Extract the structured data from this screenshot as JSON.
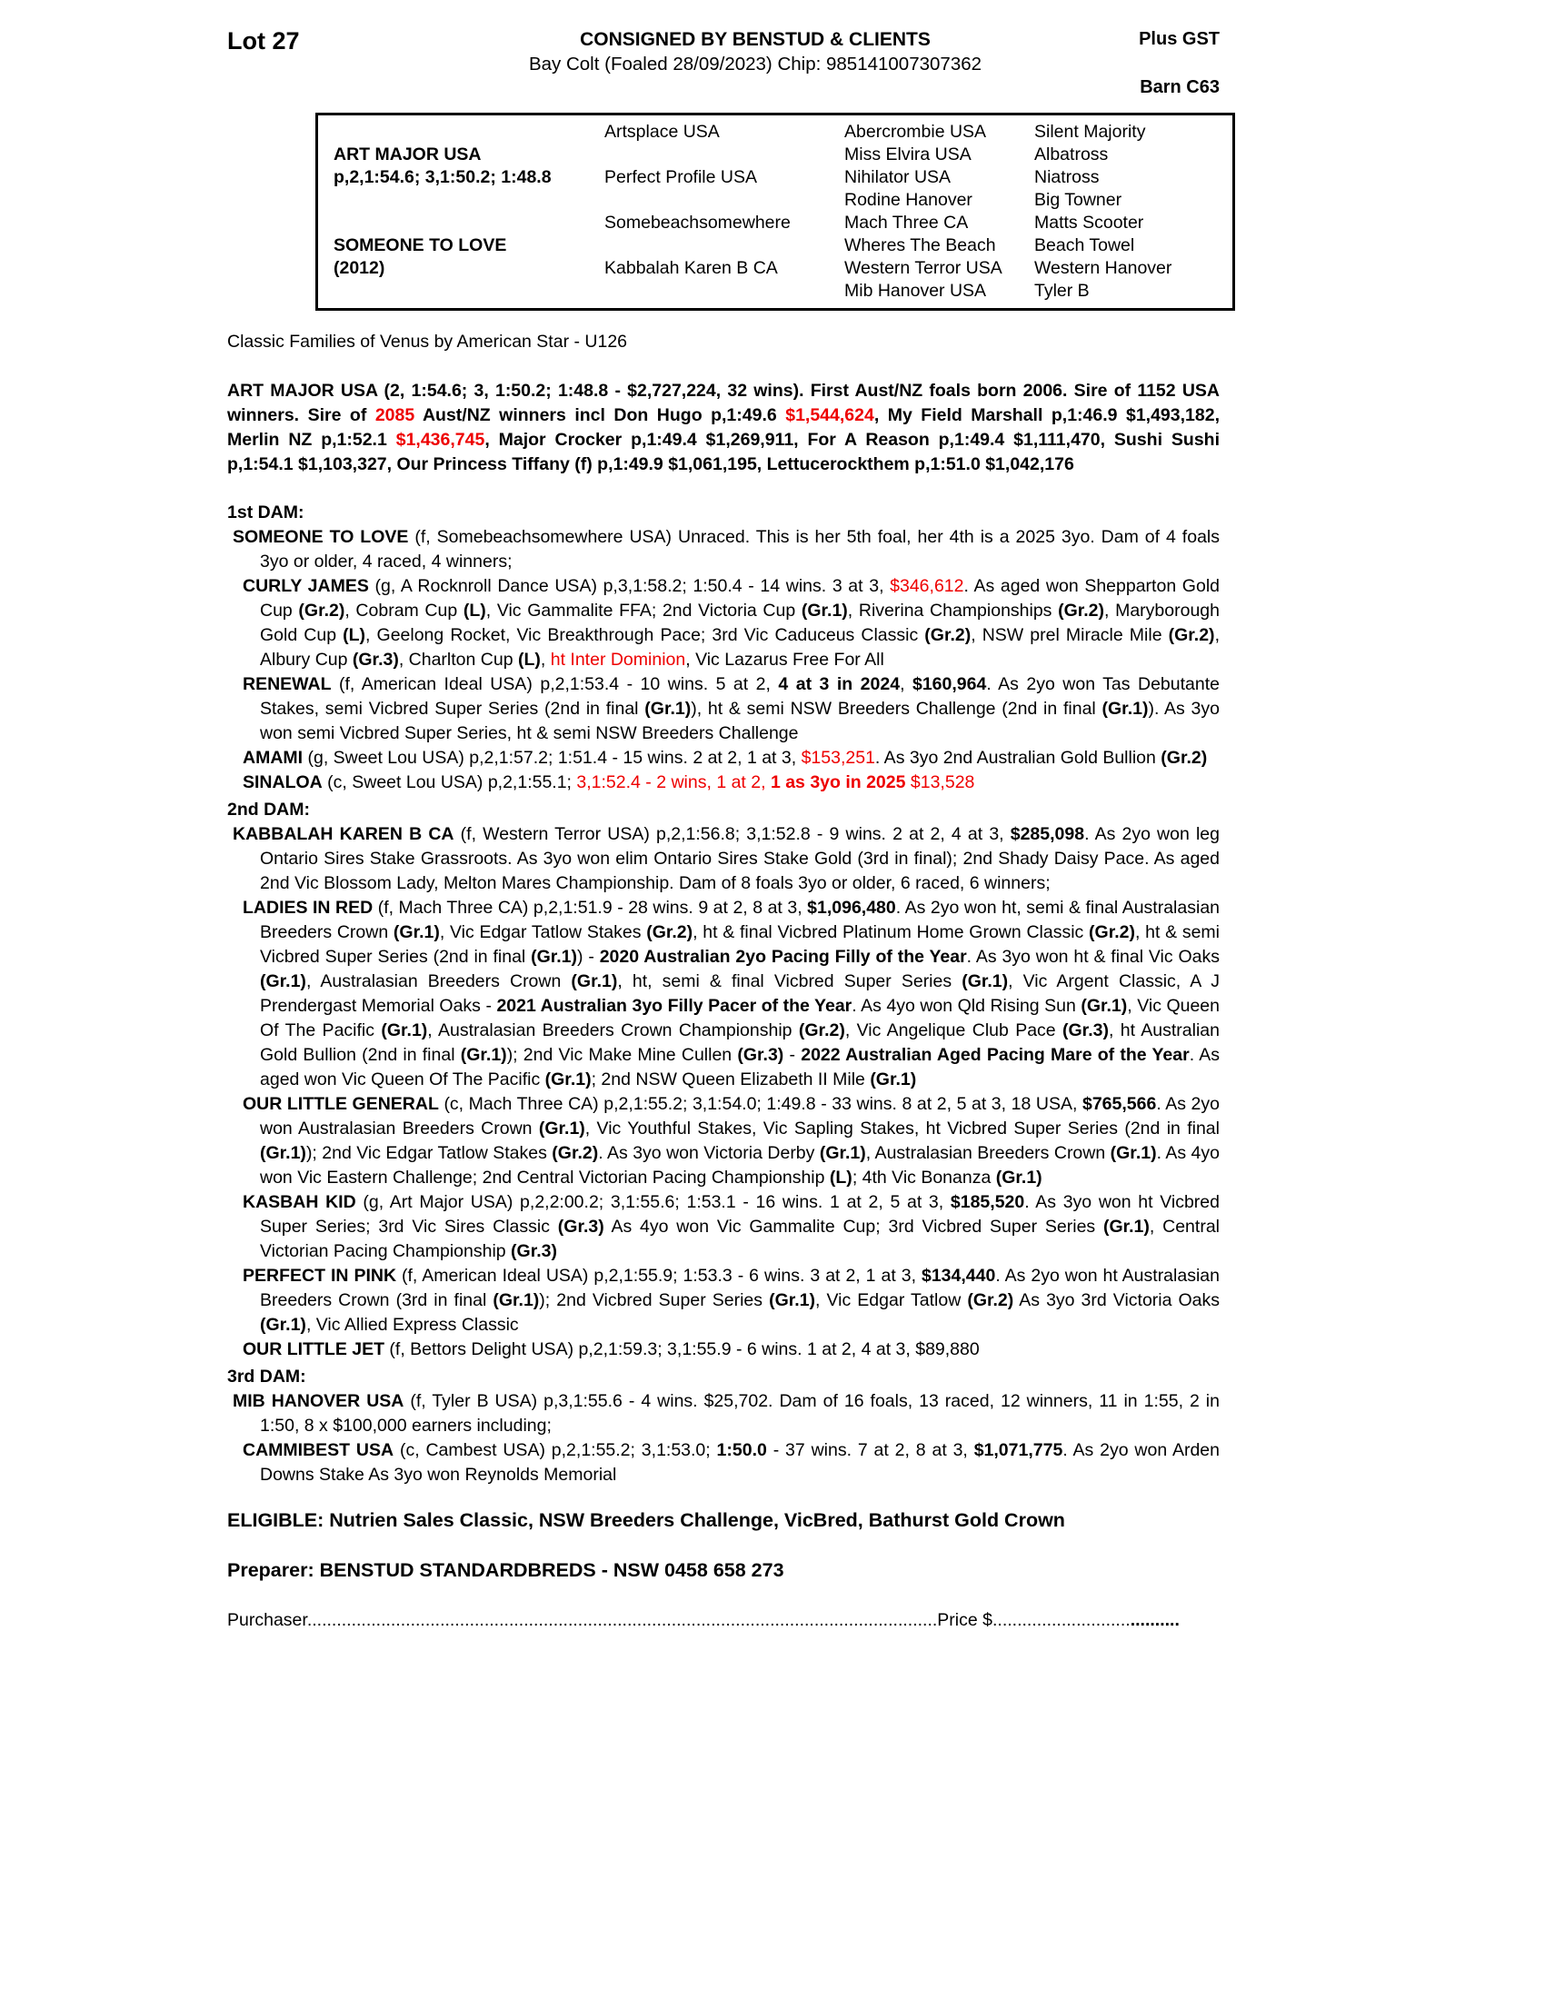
{
  "colors": {
    "red": "#ee0000",
    "text": "#000000",
    "paper": "#ffffff"
  },
  "header": {
    "lot": "Lot 27",
    "consignor": "CONSIGNED BY BENSTUD & CLIENTS",
    "description": "Bay Colt (Foaled 28/09/2023) Chip: 985141007307362",
    "tax": "Plus GST",
    "barn": "Barn C63"
  },
  "pedigree": {
    "col1": [
      "",
      "ART MAJOR USA",
      "p,2,1:54.6; 3,1:50.2; 1:48.8",
      "",
      "",
      "SOMEONE TO LOVE",
      "(2012)",
      ""
    ],
    "col2": [
      "Artsplace USA",
      "",
      "Perfect Profile USA",
      "",
      "Somebeachsomewhere",
      "",
      "Kabbalah Karen B CA",
      ""
    ],
    "col3": [
      "Abercrombie USA",
      "Miss Elvira USA",
      "Nihilator USA",
      "Rodine Hanover",
      "Mach Three CA",
      "Wheres The Beach",
      "Western Terror USA",
      "Mib Hanover USA"
    ],
    "col4": [
      "Silent Majority",
      "Albatross",
      "Niatross",
      "Big Towner",
      "Matts Scooter",
      "Beach Towel",
      "Western Hanover",
      "Tyler B"
    ]
  },
  "family_line": "Classic Families of Venus by American Star - U126",
  "sire_para": {
    "segments": [
      {
        "t": "ART MAJOR USA (2, 1:54.6; 3, 1:50.2; 1:48.8 - $2,727,224, 32 wins). First Aust/NZ foals born 2006. Sire of 1152 USA winners. Sire of ",
        "b": true
      },
      {
        "t": "2085",
        "b": true,
        "r": true
      },
      {
        "t": " Aust/NZ winners incl Don Hugo p,1:49.6 ",
        "b": true
      },
      {
        "t": "$1,544,624",
        "b": true,
        "r": true
      },
      {
        "t": ", My Field Marshall p,1:46.9 $1,493,182, Merlin NZ p,1:52.1 ",
        "b": true
      },
      {
        "t": "$1,436,745",
        "b": true,
        "r": true
      },
      {
        "t": ", Major Crocker p,1:49.4 $1,269,911, For A Reason p,1:49.4 $1,111,470, Sushi Sushi p,1:54.1 $1,103,327, Our Princess Tiffany (f) p,1:49.9 $1,061,195, Lettucerockthem p,1:51.0 $1,042,176",
        "b": true
      }
    ]
  },
  "sections": [
    {
      "heading": "1st DAM:",
      "entries": [
        {
          "segments": [
            {
              "t": "SOMEONE TO LOVE",
              "b": true
            },
            {
              "t": " (f, Somebeachsomewhere USA) Unraced. This is her 5th foal, her 4th is a 2025 3yo. Dam of 4 foals 3yo or older, 4 raced, 4 winners;"
            }
          ]
        },
        {
          "segments": [
            {
              "t": "CURLY JAMES",
              "b": true
            },
            {
              "t": " (g, A Rocknroll Dance USA) p,3,1:58.2; 1:50.4 - 14 wins. 3 at 3, "
            },
            {
              "t": "$346,612",
              "r": true
            },
            {
              "t": ". As aged won Shepparton Gold Cup "
            },
            {
              "t": "(Gr.2)",
              "b": true
            },
            {
              "t": ", Cobram Cup "
            },
            {
              "t": "(L)",
              "b": true
            },
            {
              "t": ", Vic Gammalite FFA; 2nd Victoria Cup "
            },
            {
              "t": "(Gr.1)",
              "b": true
            },
            {
              "t": ", Riverina Championships "
            },
            {
              "t": "(Gr.2)",
              "b": true
            },
            {
              "t": ", Maryborough Gold Cup "
            },
            {
              "t": "(L)",
              "b": true
            },
            {
              "t": ", Geelong Rocket, Vic Breakthrough Pace; 3rd Vic Caduceus Classic "
            },
            {
              "t": "(Gr.2)",
              "b": true
            },
            {
              "t": ", NSW prel Miracle Mile "
            },
            {
              "t": "(Gr.2)",
              "b": true
            },
            {
              "t": ", Albury Cup "
            },
            {
              "t": "(Gr.3)",
              "b": true
            },
            {
              "t": ", Charlton Cup "
            },
            {
              "t": "(L)",
              "b": true
            },
            {
              "t": ", "
            },
            {
              "t": "ht Inter Dominion",
              "r": true
            },
            {
              "t": ", Vic Lazarus Free For All"
            }
          ]
        },
        {
          "segments": [
            {
              "t": "RENEWAL",
              "b": true
            },
            {
              "t": " (f, American Ideal USA) p,2,1:53.4 - 10 wins. 5 at 2, "
            },
            {
              "t": "4 at 3 in 2024",
              "b": true
            },
            {
              "t": ", "
            },
            {
              "t": "$160,964",
              "b": true
            },
            {
              "t": ". As 2yo won Tas Debutante Stakes, semi Vicbred Super Series (2nd in final "
            },
            {
              "t": "(Gr.1)",
              "b": true
            },
            {
              "t": "), ht & semi NSW Breeders Challenge (2nd in final "
            },
            {
              "t": "(Gr.1)",
              "b": true
            },
            {
              "t": "). As 3yo won semi Vicbred Super Series, ht & semi NSW Breeders Challenge"
            }
          ]
        },
        {
          "segments": [
            {
              "t": "AMAMI",
              "b": true
            },
            {
              "t": " (g, Sweet Lou USA) p,2,1:57.2; 1:51.4 - 15 wins. 2 at 2, 1 at 3, "
            },
            {
              "t": "$153,251",
              "r": true
            },
            {
              "t": ". As 3yo 2nd Australian Gold Bullion "
            },
            {
              "t": "(Gr.2)",
              "b": true
            }
          ]
        },
        {
          "segments": [
            {
              "t": "SINALOA",
              "b": true
            },
            {
              "t": " (c, Sweet Lou USA) p,2,1:55.1; "
            },
            {
              "t": "3,1:52.4 - 2 wins, 1 at 2, ",
              "r": true
            },
            {
              "t": "1 as 3yo in 2025",
              "b": true,
              "r": true
            },
            {
              "t": " $13,528",
              "r": true
            }
          ]
        }
      ]
    },
    {
      "heading": "2nd DAM:",
      "entries": [
        {
          "segments": [
            {
              "t": "KABBALAH KAREN B CA",
              "b": true
            },
            {
              "t": " (f, Western Terror USA) p,2,1:56.8; 3,1:52.8 - 9 wins. 2 at 2, 4 at 3, "
            },
            {
              "t": "$285,098",
              "b": true
            },
            {
              "t": ". As 2yo won leg Ontario Sires Stake Grassroots. As 3yo won elim Ontario Sires Stake Gold (3rd in final); 2nd Shady Daisy Pace. As aged 2nd Vic Blossom Lady, Melton Mares Championship. Dam of 8 foals 3yo or older, 6 raced, 6 winners;"
            }
          ]
        },
        {
          "segments": [
            {
              "t": "LADIES IN RED",
              "b": true
            },
            {
              "t": " (f, Mach Three CA) p,2,1:51.9 - 28 wins. 9 at 2, 8 at 3, "
            },
            {
              "t": "$1,096,480",
              "b": true
            },
            {
              "t": ". As 2yo won ht, semi & final Australasian Breeders Crown "
            },
            {
              "t": "(Gr.1)",
              "b": true
            },
            {
              "t": ", Vic Edgar Tatlow Stakes "
            },
            {
              "t": "(Gr.2)",
              "b": true
            },
            {
              "t": ", ht & final Vicbred Platinum Home Grown Classic "
            },
            {
              "t": "(Gr.2)",
              "b": true
            },
            {
              "t": ", ht & semi Vicbred Super Series (2nd in final "
            },
            {
              "t": "(Gr.1)",
              "b": true
            },
            {
              "t": ") - "
            },
            {
              "t": "2020 Australian 2yo Pacing Filly of the Year",
              "b": true
            },
            {
              "t": ". As 3yo won ht & final Vic Oaks "
            },
            {
              "t": "(Gr.1)",
              "b": true
            },
            {
              "t": ", Australasian Breeders Crown "
            },
            {
              "t": "(Gr.1)",
              "b": true
            },
            {
              "t": ", ht, semi & final Vicbred Super Series "
            },
            {
              "t": "(Gr.1)",
              "b": true
            },
            {
              "t": ", Vic Argent Classic, A J Prendergast Memorial Oaks - "
            },
            {
              "t": "2021 Australian 3yo Filly Pacer of the Year",
              "b": true
            },
            {
              "t": ". As 4yo won Qld Rising Sun "
            },
            {
              "t": "(Gr.1)",
              "b": true
            },
            {
              "t": ", Vic Queen Of The Pacific "
            },
            {
              "t": "(Gr.1)",
              "b": true
            },
            {
              "t": ", Australasian Breeders Crown Championship "
            },
            {
              "t": "(Gr.2)",
              "b": true
            },
            {
              "t": ", Vic Angelique Club Pace "
            },
            {
              "t": "(Gr.3)",
              "b": true
            },
            {
              "t": ", ht  Australian Gold Bullion (2nd in final "
            },
            {
              "t": "(Gr.1)",
              "b": true
            },
            {
              "t": "); 2nd Vic Make Mine Cullen "
            },
            {
              "t": "(Gr.3)",
              "b": true
            },
            {
              "t": " - "
            },
            {
              "t": "2022 Australian Aged Pacing Mare of the Year",
              "b": true
            },
            {
              "t": ". As aged won Vic Queen Of The Pacific "
            },
            {
              "t": "(Gr.1)",
              "b": true
            },
            {
              "t": "; 2nd NSW Queen Elizabeth II Mile "
            },
            {
              "t": "(Gr.1)",
              "b": true
            }
          ]
        },
        {
          "segments": [
            {
              "t": "OUR LITTLE GENERAL",
              "b": true
            },
            {
              "t": " (c, Mach Three CA) p,2,1:55.2; 3,1:54.0; 1:49.8 - 33 wins. 8 at 2, 5 at 3, 18 USA, "
            },
            {
              "t": "$765,566",
              "b": true
            },
            {
              "t": ". As 2yo won Australasian Breeders Crown "
            },
            {
              "t": "(Gr.1)",
              "b": true
            },
            {
              "t": ", Vic Youthful Stakes, Vic Sapling Stakes, ht Vicbred Super Series (2nd in final "
            },
            {
              "t": "(Gr.1)",
              "b": true
            },
            {
              "t": "); 2nd Vic Edgar Tatlow Stakes "
            },
            {
              "t": "(Gr.2)",
              "b": true
            },
            {
              "t": ". As 3yo won Victoria Derby "
            },
            {
              "t": "(Gr.1)",
              "b": true
            },
            {
              "t": ", Australasian Breeders Crown "
            },
            {
              "t": "(Gr.1)",
              "b": true
            },
            {
              "t": ". As 4yo won Vic Eastern Challenge; 2nd Central Victorian Pacing Championship "
            },
            {
              "t": "(L)",
              "b": true
            },
            {
              "t": "; 4th Vic Bonanza "
            },
            {
              "t": "(Gr.1)",
              "b": true
            }
          ]
        },
        {
          "segments": [
            {
              "t": "KASBAH KID",
              "b": true
            },
            {
              "t": " (g, Art Major USA) p,2,2:00.2; 3,1:55.6; 1:53.1 - 16 wins. 1 at 2, 5 at 3, "
            },
            {
              "t": "$185,520",
              "b": true
            },
            {
              "t": ". As 3yo won ht Vicbred Super Series; 3rd Vic Sires Classic "
            },
            {
              "t": "(Gr.3)",
              "b": true
            },
            {
              "t": " As 4yo won Vic Gammalite Cup; 3rd Vicbred Super Series "
            },
            {
              "t": "(Gr.1)",
              "b": true
            },
            {
              "t": ", Central Victorian Pacing Championship "
            },
            {
              "t": "(Gr.3)",
              "b": true
            }
          ]
        },
        {
          "segments": [
            {
              "t": "PERFECT IN PINK",
              "b": true
            },
            {
              "t": " (f, American Ideal USA) p,2,1:55.9; 1:53.3 - 6 wins. 3 at 2, 1 at 3, "
            },
            {
              "t": "$134,440",
              "b": true
            },
            {
              "t": ". As 2yo won ht Australasian Breeders Crown (3rd in final "
            },
            {
              "t": "(Gr.1)",
              "b": true
            },
            {
              "t": "); 2nd Vicbred Super Series "
            },
            {
              "t": "(Gr.1)",
              "b": true
            },
            {
              "t": ", Vic Edgar Tatlow "
            },
            {
              "t": "(Gr.2)",
              "b": true
            },
            {
              "t": " As 3yo 3rd Victoria Oaks "
            },
            {
              "t": "(Gr.1)",
              "b": true
            },
            {
              "t": ", Vic Allied Express Classic"
            }
          ]
        },
        {
          "segments": [
            {
              "t": "OUR LITTLE JET",
              "b": true
            },
            {
              "t": " (f, Bettors Delight USA) p,2,1:59.3; 3,1:55.9 - 6 wins. 1 at 2, 4 at 3, $89,880"
            }
          ]
        }
      ]
    },
    {
      "heading": "3rd DAM:",
      "entries": [
        {
          "segments": [
            {
              "t": "MIB HANOVER USA",
              "b": true
            },
            {
              "t": " (f, Tyler B USA) p,3,1:55.6 - 4 wins. $25,702. Dam of 16 foals, 13 raced, 12 winners, 11 in 1:55, 2 in 1:50, 8 x $100,000 earners including;"
            }
          ]
        },
        {
          "segments": [
            {
              "t": "CAMMIBEST USA",
              "b": true
            },
            {
              "t": " (c, Cambest USA) p,2,1:55.2; 3,1:53.0; "
            },
            {
              "t": "1:50.0",
              "b": true
            },
            {
              "t": " - 37 wins. 7 at 2, 8 at 3, "
            },
            {
              "t": "$1,071,775",
              "b": true
            },
            {
              "t": ". As 2yo won Arden Downs Stake As 3yo won Reynolds Memorial"
            }
          ]
        }
      ]
    }
  ],
  "eligible": {
    "segments": [
      {
        "t": "ELIGIBLE: Nutrien Sales Classic, NSW Breeders Challenge, VicBred, Bathurst Gold Crown",
        "b": true
      }
    ]
  },
  "preparer": {
    "segments": [
      {
        "t": "Preparer: BENSTUD STANDARDBREDS - NSW 0458 658 273",
        "b": true
      }
    ]
  },
  "purchaser": {
    "segments": [
      {
        "t": "Purchaser"
      },
      {
        "t": "................................................................................................................................"
      },
      {
        "t": "Price $"
      },
      {
        "t": "............................"
      },
      {
        "t": "..........",
        "b": true
      }
    ]
  }
}
